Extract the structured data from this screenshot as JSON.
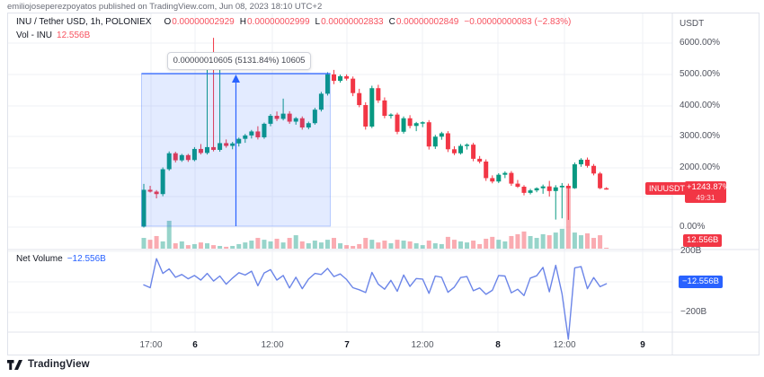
{
  "publish_bar": {
    "text": "emiliojoseperezpoyatos published on TradingView.com, Jun 08, 2023 18:10 UTC+2"
  },
  "legend": {
    "title": "INU / Tether USD, 1h, POLONIEX",
    "ohlc": {
      "o_label": "O",
      "o": "0.00000002929",
      "h_label": "H",
      "h": "0.00000002999",
      "l_label": "L",
      "l": "0.00000002833",
      "c_label": "C",
      "c": "0.00000002849",
      "change": "−0.00000000083 (−2.83%)"
    },
    "vol_label": "Vol - INU",
    "vol_value": "12.556B"
  },
  "tooltip": {
    "text": "0.00000010605 (5131.84%) 10605"
  },
  "price_axis": {
    "currency": "USDT",
    "ticks": [
      "6000.00%",
      "5000.00%",
      "4000.00%",
      "3000.00%",
      "2000.00%",
      "0.00%"
    ],
    "symbol_badge": "INUUSDT",
    "last_change_badge": "+1243.87%",
    "countdown": "49:31",
    "volume_badge": "12.556B"
  },
  "net_volume": {
    "label": "Net Volume",
    "value": "−12.556B",
    "badge": "−12.556B",
    "axis_top": "200B",
    "axis_bottom": "−200B"
  },
  "time_axis": {
    "ticks": [
      {
        "label": "17:00",
        "bold": false
      },
      {
        "label": "6",
        "bold": true
      },
      {
        "label": "12:00",
        "bold": false
      },
      {
        "label": "7",
        "bold": true
      },
      {
        "label": "12:00",
        "bold": false
      },
      {
        "label": "8",
        "bold": true
      },
      {
        "label": "12:00",
        "bold": false
      },
      {
        "label": "9",
        "bold": true
      }
    ]
  },
  "footer": {
    "brand": "TradingView"
  },
  "colors": {
    "up": "#089981",
    "down": "#f23645",
    "vol_up": "rgba(8,153,129,0.42)",
    "vol_down": "rgba(242,54,69,0.42)",
    "net_volume_line": "#6b85e8",
    "accent_blue": "#2962ff",
    "grid": "#eff1f6",
    "separator": "#e0e3eb"
  },
  "chart_data": {
    "type": "candlestick",
    "symbol": "INU/USDT",
    "exchange": "POLONIEX",
    "interval": "1h",
    "scale": "percent-change",
    "price_axis_ticks_pct": [
      6000,
      5000,
      4000,
      3000,
      2000,
      0
    ],
    "net_volume_axis_B": [
      200,
      -200
    ],
    "last_change_pct": 1243.87,
    "last_ohlc": {
      "o": "0.00000002929",
      "h": "0.00000002999",
      "l": "0.00000002833",
      "c": "0.00000002849",
      "change_pct": -2.83
    },
    "last_volume": "12.556B",
    "net_volume_last": "−12.556B",
    "measurement": {
      "text": "0.00000010605 (5131.84%) 10605",
      "from_bar": 0,
      "to_bar": 29
    },
    "candles_pct": [
      [
        30,
        1420,
        0,
        1230
      ],
      [
        1230,
        1360,
        1140,
        1170
      ],
      [
        1170,
        1220,
        950,
        1090
      ],
      [
        1090,
        1960,
        1020,
        1900
      ],
      [
        1900,
        2480,
        1850,
        2420
      ],
      [
        2420,
        2470,
        2120,
        2190
      ],
      [
        2190,
        2400,
        2140,
        2360
      ],
      [
        2360,
        2400,
        2140,
        2200
      ],
      [
        2200,
        2620,
        2160,
        2560
      ],
      [
        2560,
        2720,
        2380,
        2430
      ],
      [
        2430,
        5200,
        2380,
        2620
      ],
      [
        2620,
        6180,
        2480,
        2530
      ],
      [
        2530,
        5200,
        2470,
        2750
      ],
      [
        2750,
        2870,
        2600,
        2660
      ],
      [
        2660,
        2790,
        2550,
        2740
      ],
      [
        2740,
        2930,
        2640,
        2890
      ],
      [
        2890,
        3050,
        2760,
        3000
      ],
      [
        3000,
        3180,
        2900,
        3130
      ],
      [
        3130,
        3300,
        2870,
        2940
      ],
      [
        2940,
        3420,
        2890,
        3380
      ],
      [
        3380,
        3700,
        3300,
        3640
      ],
      [
        3640,
        3780,
        3470,
        3540
      ],
      [
        3540,
        4200,
        3490,
        3710
      ],
      [
        3710,
        3790,
        3380,
        3450
      ],
      [
        3450,
        3600,
        3350,
        3560
      ],
      [
        3560,
        3620,
        3190,
        3260
      ],
      [
        3260,
        3450,
        3200,
        3400
      ],
      [
        3400,
        3900,
        3350,
        3840
      ],
      [
        3840,
        4420,
        3780,
        4360
      ],
      [
        4360,
        5060,
        4300,
        4990
      ],
      [
        4990,
        5135,
        4670,
        4780
      ],
      [
        4780,
        4980,
        4720,
        4930
      ],
      [
        4930,
        4990,
        4790,
        4850
      ],
      [
        4850,
        4920,
        4280,
        4380
      ],
      [
        4380,
        4520,
        3920,
        3990
      ],
      [
        3990,
        4080,
        3190,
        3290
      ],
      [
        3290,
        4620,
        3240,
        4540
      ],
      [
        4540,
        4650,
        4060,
        4140
      ],
      [
        4140,
        4240,
        3560,
        3640
      ],
      [
        3640,
        3720,
        3550,
        3680
      ],
      [
        3680,
        3740,
        3040,
        3120
      ],
      [
        3120,
        3620,
        3060,
        3560
      ],
      [
        3560,
        3660,
        3230,
        3310
      ],
      [
        3310,
        3440,
        3140,
        3400
      ],
      [
        3400,
        3460,
        3270,
        3430
      ],
      [
        3430,
        3500,
        2540,
        2640
      ],
      [
        2640,
        3020,
        2560,
        2960
      ],
      [
        2960,
        3120,
        2860,
        3070
      ],
      [
        3070,
        3140,
        2460,
        2550
      ],
      [
        2550,
        2650,
        2360,
        2420
      ],
      [
        2420,
        2720,
        2380,
        2660
      ],
      [
        2660,
        2740,
        2540,
        2700
      ],
      [
        2700,
        2760,
        2160,
        2240
      ],
      [
        2240,
        2330,
        2090,
        2150
      ],
      [
        2150,
        2220,
        1520,
        1610
      ],
      [
        1610,
        1700,
        1440,
        1500
      ],
      [
        1500,
        1770,
        1450,
        1720
      ],
      [
        1720,
        1830,
        1610,
        1780
      ],
      [
        1780,
        1840,
        1360,
        1430
      ],
      [
        1430,
        1550,
        1290,
        1330
      ],
      [
        1330,
        1380,
        1050,
        1130
      ],
      [
        1130,
        1260,
        1080,
        1210
      ],
      [
        1210,
        1310,
        1150,
        1280
      ],
      [
        1280,
        1400,
        1100,
        1340
      ],
      [
        1340,
        1520,
        1010,
        1190
      ],
      [
        1190,
        1380,
        260,
        1310
      ],
      [
        1310,
        1450,
        300,
        1360
      ],
      [
        1360,
        1430,
        250,
        1280
      ],
      [
        1280,
        2120,
        1260,
        2060
      ],
      [
        2060,
        2260,
        1980,
        2210
      ],
      [
        2210,
        2280,
        1950,
        2010
      ],
      [
        2010,
        2070,
        1700,
        1760
      ],
      [
        1760,
        1810,
        1250,
        1281
      ],
      [
        1281,
        1314,
        1236,
        1244
      ]
    ],
    "volumes_B": [
      520,
      430,
      610,
      350,
      1350,
      260,
      350,
      170,
      220,
      300,
      260,
      170,
      130,
      90,
      130,
      220,
      300,
      390,
      520,
      430,
      350,
      480,
      300,
      520,
      650,
      350,
      260,
      390,
      300,
      430,
      520,
      260,
      170,
      130,
      220,
      520,
      430,
      300,
      390,
      260,
      430,
      390,
      350,
      260,
      170,
      390,
      260,
      220,
      570,
      430,
      350,
      300,
      390,
      220,
      480,
      570,
      430,
      350,
      610,
      700,
      830,
      610,
      520,
      700,
      650,
      780,
      960,
      3000,
      780,
      650,
      740,
      520,
      650,
      12.556
    ],
    "net_volume_B": [
      -20,
      -38,
      152,
      55,
      85,
      30,
      48,
      20,
      42,
      12,
      55,
      5,
      38,
      -15,
      25,
      60,
      45,
      70,
      -25,
      58,
      80,
      12,
      42,
      -40,
      30,
      -45,
      18,
      55,
      48,
      88,
      35,
      52,
      15,
      -38,
      -52,
      -70,
      62,
      -15,
      -48,
      10,
      -62,
      45,
      -30,
      22,
      18,
      -75,
      38,
      30,
      -68,
      -35,
      28,
      35,
      -58,
      -40,
      -82,
      -55,
      42,
      38,
      -72,
      -48,
      -90,
      25,
      40,
      95,
      -65,
      108,
      -78,
      -376,
      92,
      100,
      -45,
      28,
      -32,
      -12.556
    ]
  }
}
